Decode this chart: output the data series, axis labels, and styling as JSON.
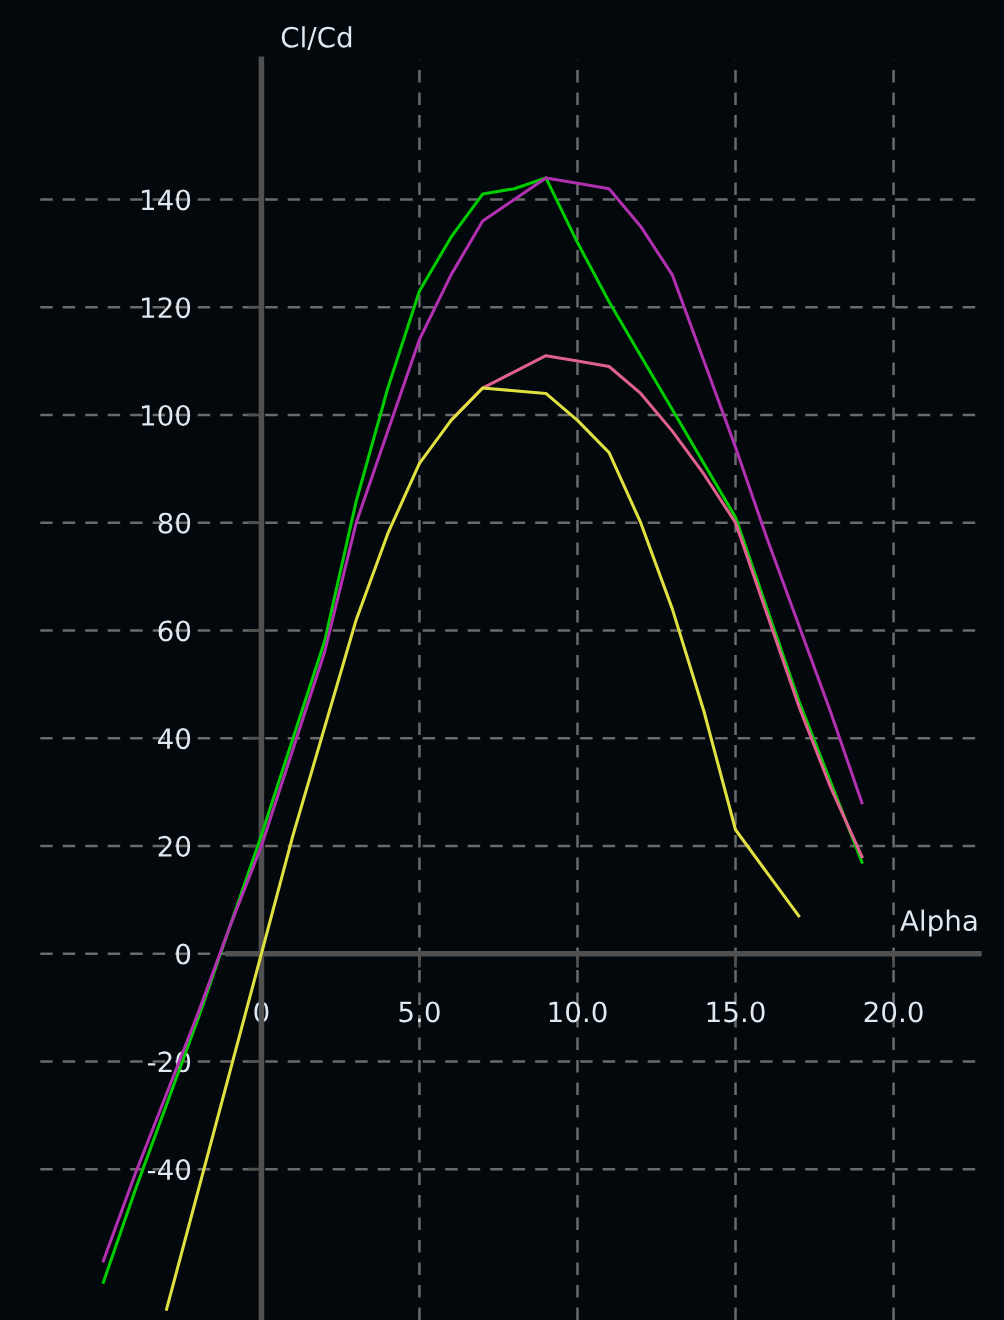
{
  "chart_data": {
    "type": "line",
    "xlabel": "Alpha",
    "ylabel": "Cl/Cd",
    "xlim": [
      -7,
      22.7
    ],
    "ylim": [
      -68,
      166
    ],
    "xticks": [
      {
        "value": 0,
        "label": "0"
      },
      {
        "value": 5,
        "label": "5.0"
      },
      {
        "value": 10,
        "label": "10.0"
      },
      {
        "value": 15,
        "label": "15.0"
      },
      {
        "value": 20,
        "label": "20.0"
      }
    ],
    "yticks": [
      -40,
      -20,
      0,
      20,
      40,
      60,
      80,
      100,
      120,
      140
    ],
    "grid": true,
    "marker": "none",
    "line_style": "solid",
    "series": [
      {
        "color": "#00cc00",
        "x": [
          -5,
          -4,
          -3,
          -2,
          -1,
          0,
          1,
          2,
          3,
          4,
          5,
          6,
          7,
          8,
          9,
          10,
          11,
          12,
          13,
          14,
          15,
          16,
          17,
          18,
          19
        ],
        "values": [
          -61,
          -44,
          -28,
          -12,
          5,
          22,
          40,
          58,
          84,
          105,
          123,
          133,
          141,
          142,
          144,
          132,
          121,
          111,
          101,
          91,
          81,
          64,
          47,
          32,
          17
        ]
      },
      {
        "color": "#b030b0",
        "x": [
          -5,
          -4,
          -3,
          -2,
          -1,
          0,
          1,
          2,
          3,
          4,
          5,
          6,
          7,
          8,
          9,
          10,
          11,
          12,
          13,
          14,
          15,
          16,
          17,
          18,
          19
        ],
        "values": [
          -57,
          -41,
          -26,
          -11,
          5,
          20,
          38,
          56,
          80,
          97,
          114,
          126,
          136,
          140,
          144,
          143,
          142,
          135,
          126,
          110,
          94,
          77,
          61,
          45,
          28
        ]
      },
      {
        "color": "#e06090",
        "x": [
          6,
          7,
          8,
          9,
          10,
          11,
          12,
          13,
          14,
          15,
          16,
          17,
          18,
          19
        ],
        "values": [
          99,
          105,
          108,
          111,
          110,
          109,
          104,
          97,
          89,
          80,
          63,
          46,
          31,
          18
        ]
      },
      {
        "color": "#e0e040",
        "x": [
          -3,
          -2,
          -1,
          0,
          1,
          2,
          3,
          4,
          5,
          6,
          7,
          8,
          9,
          10,
          11,
          12,
          13,
          14,
          15,
          16,
          17
        ],
        "values": [
          -66,
          -44,
          -22,
          0,
          22,
          42,
          62,
          78,
          91,
          99,
          105,
          104.5,
          104,
          99,
          93,
          80,
          64,
          45,
          23,
          15,
          7
        ]
      }
    ]
  }
}
